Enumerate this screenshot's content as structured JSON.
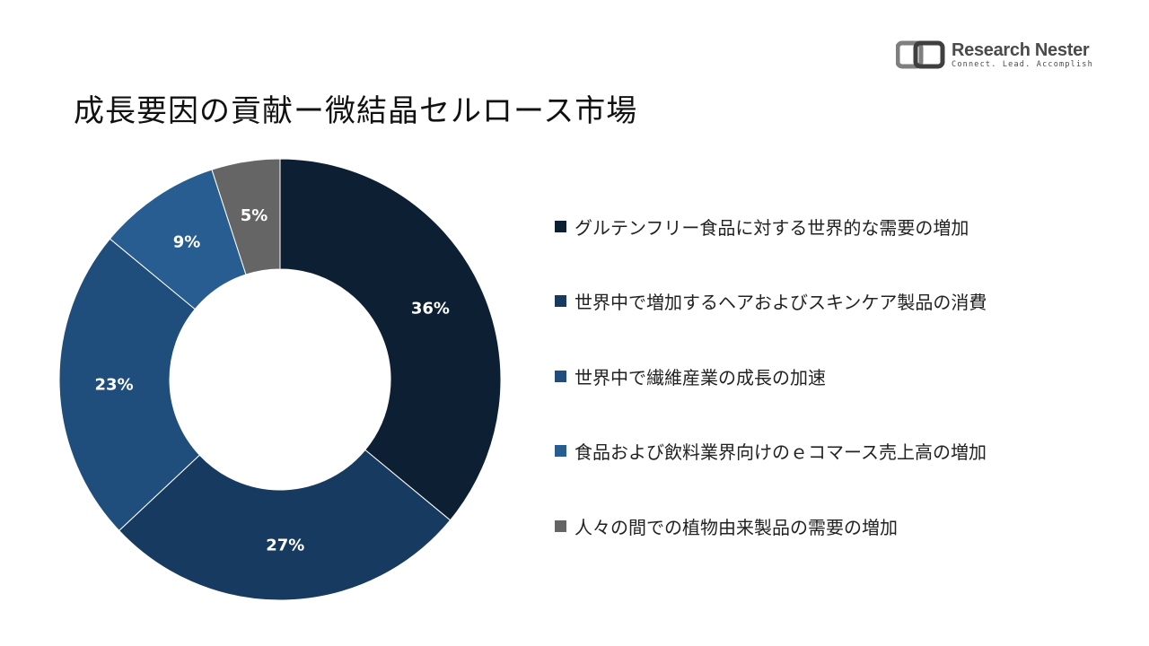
{
  "title": "成長要因の貢献ー微結晶セルロース市場",
  "logo": {
    "name": "Research Nester",
    "tagline": "Connect. Lead. Accomplish",
    "icon": "research-nester-logo-icon"
  },
  "chart_data": {
    "type": "pie",
    "donut": true,
    "title": "成長要因の貢献ー微結晶セルロース市場",
    "legend_position": "right",
    "slices": [
      {
        "label": "グルテンフリー食品に対する世界的な需要の増加",
        "value": 36,
        "display": "36%",
        "color": "#0d1f33"
      },
      {
        "label": "世界中で増加するヘアおよびスキンケア製品の消費",
        "value": 27,
        "display": "27%",
        "color": "#173a60"
      },
      {
        "label": "世界中で繊維産業の成長の加速",
        "value": 23,
        "display": "23%",
        "color": "#1f4e7c"
      },
      {
        "label": "食品および飲料業界向けのｅコマース売上高の増加",
        "value": 9,
        "display": "9%",
        "color": "#275d91"
      },
      {
        "label": "人々の間での植物由来製品の需要の増加",
        "value": 5,
        "display": "5%",
        "color": "#656565"
      }
    ]
  }
}
